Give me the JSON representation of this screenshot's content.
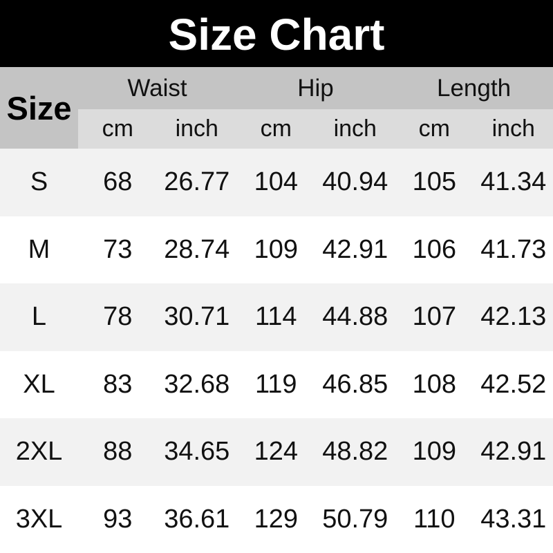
{
  "title": "Size Chart",
  "table": {
    "size_header": "Size",
    "groups": [
      {
        "label": "Waist"
      },
      {
        "label": "Hip"
      },
      {
        "label": "Length"
      }
    ],
    "units": [
      "cm",
      "inch",
      "cm",
      "inch",
      "cm",
      "inch"
    ],
    "rows": [
      {
        "size": "S",
        "values": [
          "68",
          "26.77",
          "104",
          "40.94",
          "105",
          "41.34"
        ]
      },
      {
        "size": "M",
        "values": [
          "73",
          "28.74",
          "109",
          "42.91",
          "106",
          "41.73"
        ]
      },
      {
        "size": "L",
        "values": [
          "78",
          "30.71",
          "114",
          "44.88",
          "107",
          "42.13"
        ]
      },
      {
        "size": "XL",
        "values": [
          "83",
          "32.68",
          "119",
          "46.85",
          "108",
          "42.52"
        ]
      },
      {
        "size": "2XL",
        "values": [
          "88",
          "34.65",
          "124",
          "48.82",
          "109",
          "42.91"
        ]
      },
      {
        "size": "3XL",
        "values": [
          "93",
          "36.61",
          "129",
          "50.79",
          "110",
          "43.31"
        ]
      }
    ]
  },
  "colors": {
    "title_bar_bg": "#000000",
    "title_text": "#ffffff",
    "group_band_bg": "#c4c4c4",
    "unit_band_bg": "#dcdcdc",
    "row_alt_bg": "#f2f2f2",
    "row_bg": "#ffffff",
    "text": "#111111"
  },
  "chart_data": {
    "type": "table",
    "title": "Size Chart",
    "columns": [
      "Size",
      "Waist cm",
      "Waist inch",
      "Hip cm",
      "Hip inch",
      "Length cm",
      "Length inch"
    ],
    "rows": [
      [
        "S",
        68,
        26.77,
        104,
        40.94,
        105,
        41.34
      ],
      [
        "M",
        73,
        28.74,
        109,
        42.91,
        106,
        41.73
      ],
      [
        "L",
        78,
        30.71,
        114,
        44.88,
        107,
        42.13
      ],
      [
        "XL",
        83,
        32.68,
        119,
        46.85,
        108,
        42.52
      ],
      [
        "2XL",
        88,
        34.65,
        124,
        48.82,
        109,
        42.91
      ],
      [
        "3XL",
        93,
        36.61,
        129,
        50.79,
        110,
        43.31
      ]
    ]
  }
}
